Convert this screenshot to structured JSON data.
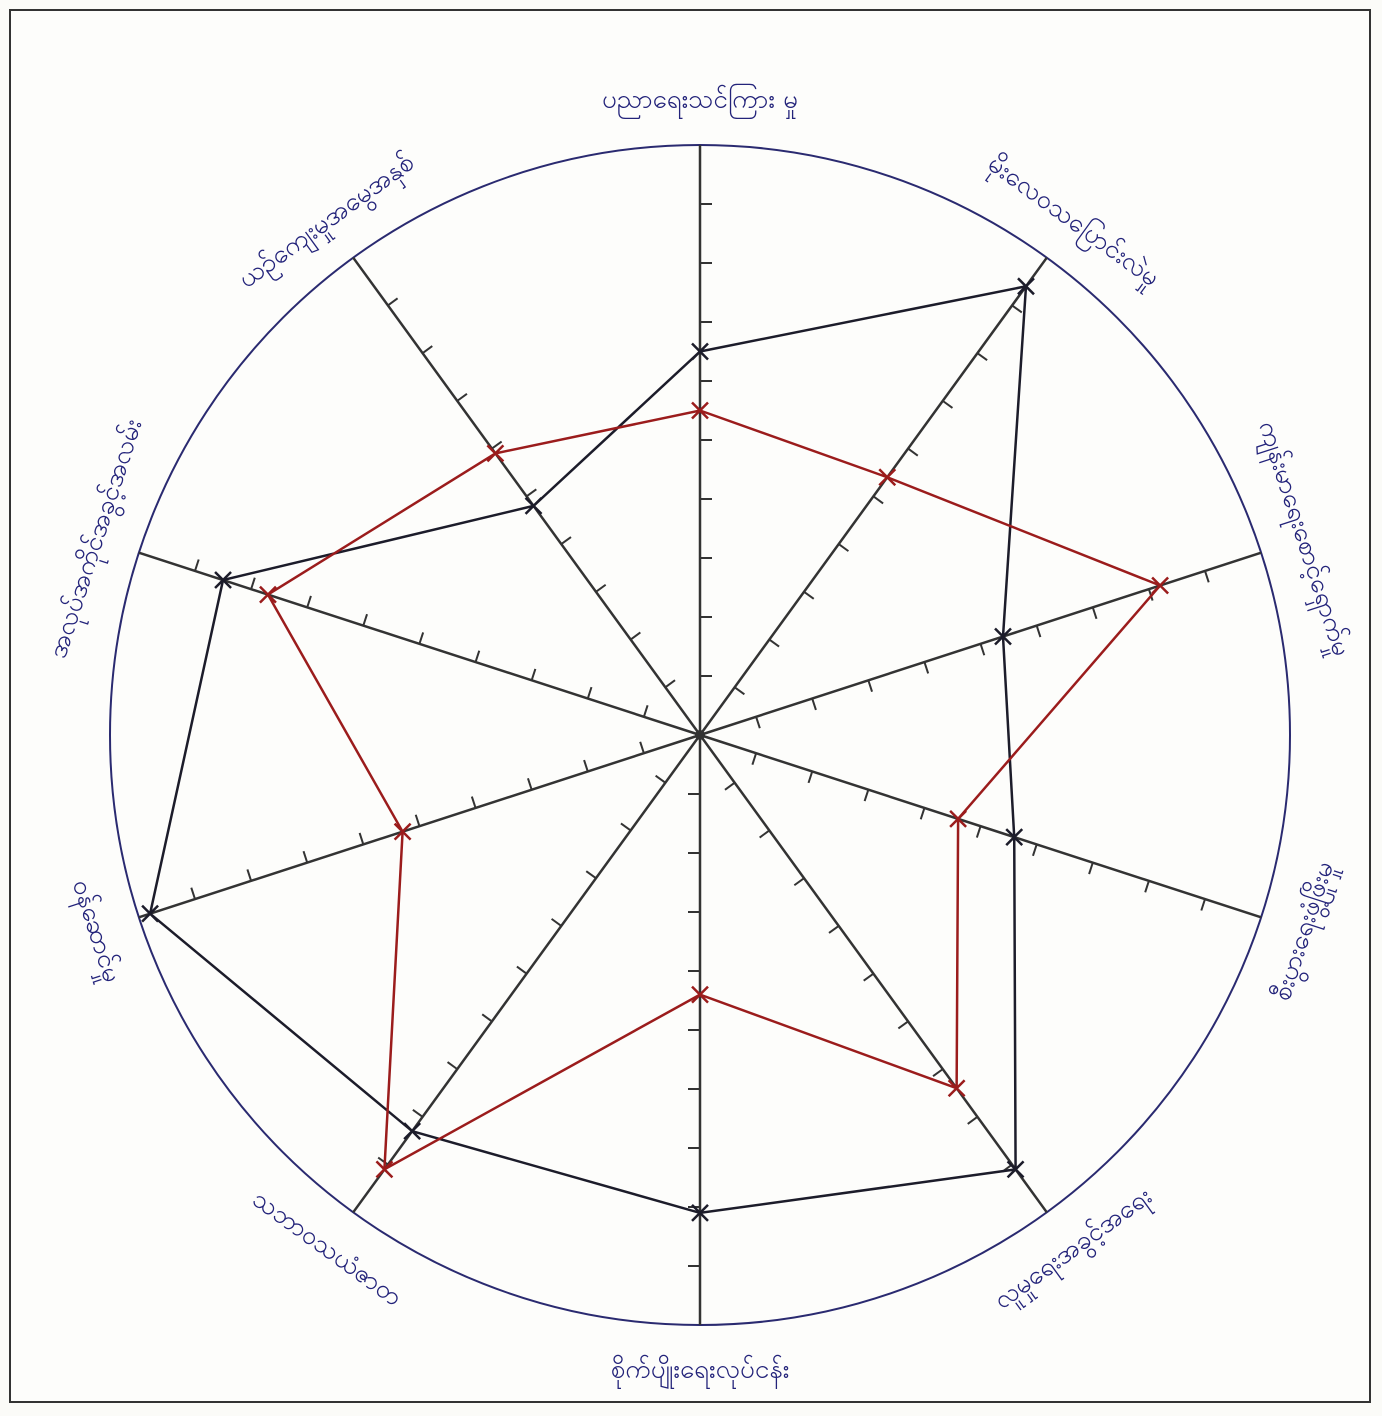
{
  "chart_data": {
    "type": "radar",
    "categories": [
      "ပညာရေးသင်ကြား မှု",
      "မိုးလေဝသပြောင်းလဲမှု",
      "ကျန်းမာရေးစောင့်ရှောက်မှု",
      "စီးပွားရေးဖွံ့ဖြိုးမှု",
      "လူမှုရေးအခွင့်အရေး",
      "စိုက်ပျိုးရေးလုပ်ငန်း",
      "သဘာဝသယံဇာတ",
      "ဝန်ဆောင်မှု",
      "အလုပ်အကိုင်အခွင့်အလမ်း",
      "ယဉ်ကျေးမှုအမွေအနှစ်"
    ],
    "rlim": [
      0,
      10
    ],
    "rticks": [
      1,
      2,
      3,
      4,
      5,
      6,
      7,
      8,
      9
    ],
    "series": [
      {
        "color": "#1c1c2a",
        "values": [
          6.5,
          9.4,
          5.4,
          5.6,
          9.1,
          8.1,
          8.3,
          9.8,
          8.5,
          4.8
        ]
      },
      {
        "color": "#9b1c1c",
        "values": [
          5.5,
          5.4,
          8.2,
          4.6,
          7.4,
          4.4,
          9.1,
          5.3,
          7.7,
          5.9
        ]
      }
    ]
  }
}
